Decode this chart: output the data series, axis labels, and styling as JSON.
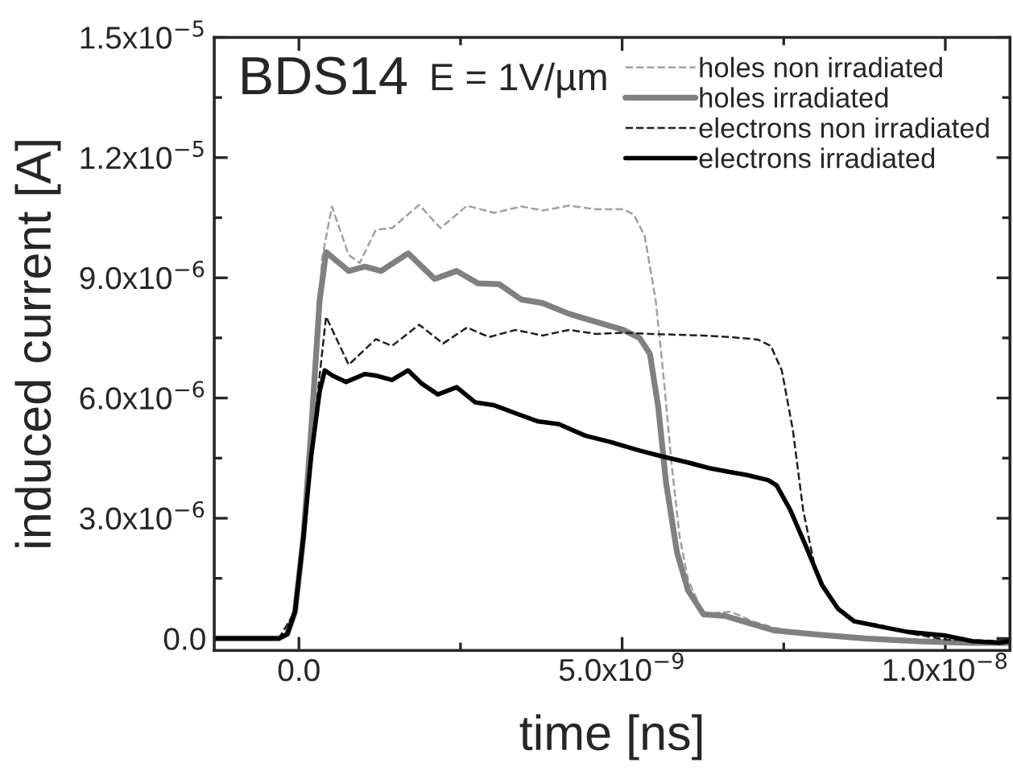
{
  "chart_data": {
    "type": "line",
    "xlabel": "time [ns]",
    "ylabel": "induced current [A]",
    "annotations": [
      "BDS14",
      "E = 1V/µm"
    ],
    "xlim": [
      -1.31e-09,
      1.1e-08
    ],
    "xticks": [
      {
        "value": 0,
        "label": "0.0"
      },
      {
        "value": 5e-09,
        "label": "5.0x10$^{−9}$"
      },
      {
        "value": 1e-08,
        "label": "1.0x10$^{−8}$"
      }
    ],
    "ylim": [
      -3e-07,
      1.5e-05
    ],
    "yticks": [
      {
        "value": 0,
        "label": "0.0"
      },
      {
        "value": 3e-06,
        "label": "3.0x10$^{−6}$"
      },
      {
        "value": 6e-06,
        "label": "6.0x10$^{−6}$"
      },
      {
        "value": 9e-06,
        "label": "9.0x10$^{−6}$"
      },
      {
        "value": 1.2e-05,
        "label": "1.2x10$^{−5}$"
      },
      {
        "value": 1.5e-05,
        "label": "1.5x10$^{−5}$"
      }
    ],
    "grid": false,
    "legend": "top right",
    "marker": "none",
    "series": [
      {
        "name": "holes non irradiated",
        "color": "#a0a0a0",
        "line_style": "dashed",
        "x": [
          -1.31e-09,
          -3.1e-10,
          -6e-11,
          7e-11,
          2.3e-10,
          3.6e-10,
          5.1e-10,
          7.7e-10,
          9.4e-10,
          1.19e-09,
          1.44e-09,
          1.86e-09,
          2.19e-09,
          2.6e-09,
          3.02e-09,
          3.44e-09,
          3.77e-09,
          4.18e-09,
          4.6e-09,
          5.02e-09,
          5.18e-09,
          5.35e-09,
          5.52e-09,
          5.64e-09,
          5.77e-09,
          5.89e-09,
          6.02e-09,
          6.26e-09,
          6.68e-09,
          7.01e-09,
          7.35e-09,
          7.93e-09,
          9.18e-09,
          1.042e-08,
          1.1e-08
        ],
        "values": [
          0,
          0,
          6.7e-07,
          2.54e-06,
          6e-06,
          9.5e-06,
          1.078e-05,
          9.57e-06,
          9.37e-06,
          1.02e-05,
          1.024e-05,
          1.082e-05,
          1.024e-05,
          1.08e-05,
          1.062e-05,
          1.078e-05,
          1.068e-05,
          1.08e-05,
          1.071e-05,
          1.071e-05,
          1.058e-05,
          1.004e-05,
          8.43e-06,
          6.56e-06,
          4.28e-06,
          2.54e-06,
          1.47e-06,
          6e-07,
          6.7e-07,
          4.3e-07,
          2.7e-07,
          7e-08,
          0,
          -1.1e-07,
          -7e-08
        ]
      },
      {
        "name": "holes irradiated",
        "color": "#808080",
        "line_style": "solid",
        "x": [
          -1.31e-09,
          -3.1e-10,
          -1.8e-10,
          -6e-11,
          7e-11,
          1.9e-10,
          3.2e-10,
          4.2e-10,
          7.7e-10,
          1.02e-09,
          1.27e-09,
          1.69e-09,
          2.1e-09,
          2.44e-09,
          2.77e-09,
          3.1e-09,
          3.44e-09,
          3.77e-09,
          4.18e-09,
          4.6e-09,
          5.02e-09,
          5.27e-09,
          5.43e-09,
          5.56e-09,
          5.68e-09,
          5.85e-09,
          6.02e-09,
          6.26e-09,
          6.6e-09,
          6.93e-09,
          7.35e-09,
          7.93e-09,
          8.76e-09,
          9.59e-09,
          1.042e-08,
          1.1e-08
        ],
        "values": [
          0,
          0,
          1.1e-07,
          6.7e-07,
          2.54e-06,
          5.2e-06,
          8.43e-06,
          9.64e-06,
          9.17e-06,
          9.28e-06,
          9.17e-06,
          9.61e-06,
          8.97e-06,
          9.17e-06,
          8.86e-06,
          8.84e-06,
          8.46e-06,
          8.37e-06,
          8.1e-06,
          7.9e-06,
          7.7e-06,
          7.5e-06,
          7.1e-06,
          5.76e-06,
          3.88e-06,
          2.14e-06,
          1.2e-06,
          6e-07,
          5.6e-07,
          4e-07,
          2e-07,
          1.1e-07,
          0,
          -7e-08,
          -1.1e-07,
          -1.1e-07
        ]
      },
      {
        "name": "electrons non irradiated",
        "color": "#202020",
        "line_style": "dashed",
        "x": [
          -1.31e-09,
          -3.1e-10,
          -6e-11,
          7e-11,
          3.2e-10,
          4.2e-10,
          7.7e-10,
          1.19e-09,
          1.44e-09,
          1.86e-09,
          2.23e-09,
          2.6e-09,
          2.94e-09,
          3.35e-09,
          3.77e-09,
          4.18e-09,
          4.6e-09,
          5.02e-09,
          5.43e-09,
          6.26e-09,
          6.68e-09,
          7.1e-09,
          7.3e-09,
          7.47e-09,
          7.64e-09,
          7.8e-09,
          7.97e-09,
          8.18e-09,
          8.51e-09,
          9.01e-09,
          9.43e-09,
          1.001e-08,
          1.1e-08
        ],
        "values": [
          0,
          0,
          6.7e-07,
          2.54e-06,
          6.56e-06,
          8.03e-06,
          6.83e-06,
          7.47e-06,
          7.3e-06,
          7.83e-06,
          7.36e-06,
          7.76e-06,
          7.52e-06,
          7.7e-06,
          7.56e-06,
          7.7e-06,
          7.6e-06,
          7.63e-06,
          7.6e-06,
          7.56e-06,
          7.52e-06,
          7.46e-06,
          7.3e-06,
          6.69e-06,
          5.22e-06,
          3.21e-06,
          1.87e-06,
          1.07e-06,
          4.7e-07,
          3.3e-07,
          1.3e-07,
          -3e-08,
          -7e-08
        ]
      },
      {
        "name": "electrons irradiated",
        "color": "#000000",
        "line_style": "solid",
        "x": [
          -1.31e-09,
          -3.1e-10,
          -1.8e-10,
          -6e-11,
          7e-11,
          1.9e-10,
          3.2e-10,
          4e-10,
          5.2e-10,
          7.3e-10,
          1.02e-09,
          1.19e-09,
          1.44e-09,
          1.69e-09,
          1.9e-09,
          2.15e-09,
          2.44e-09,
          2.73e-09,
          3.02e-09,
          3.35e-09,
          3.69e-09,
          4.02e-09,
          4.43e-09,
          4.85e-09,
          5.27e-09,
          5.6e-09,
          6.02e-09,
          6.35e-09,
          6.68e-09,
          6.93e-09,
          7.26e-09,
          7.39e-09,
          7.6e-09,
          7.85e-09,
          8.09e-09,
          8.34e-09,
          8.59e-09,
          9.01e-09,
          9.43e-09,
          1.001e-08,
          1.042e-08,
          1.084e-08,
          1.1e-08
        ],
        "values": [
          0,
          0,
          1.1e-07,
          6.7e-07,
          2.54e-06,
          4.55e-06,
          6.16e-06,
          6.69e-06,
          6.56e-06,
          6.4e-06,
          6.6e-06,
          6.56e-06,
          6.45e-06,
          6.69e-06,
          6.36e-06,
          6.09e-06,
          6.27e-06,
          5.89e-06,
          5.82e-06,
          5.62e-06,
          5.42e-06,
          5.35e-06,
          5.06e-06,
          4.89e-06,
          4.69e-06,
          4.55e-06,
          4.39e-06,
          4.25e-06,
          4.15e-06,
          4.08e-06,
          3.95e-06,
          3.82e-06,
          3.21e-06,
          2.28e-06,
          1.34e-06,
          7.4e-07,
          4.3e-07,
          2.9e-07,
          1.6e-07,
          7e-08,
          -7e-08,
          -1.1e-07,
          -7e-08
        ]
      }
    ]
  }
}
